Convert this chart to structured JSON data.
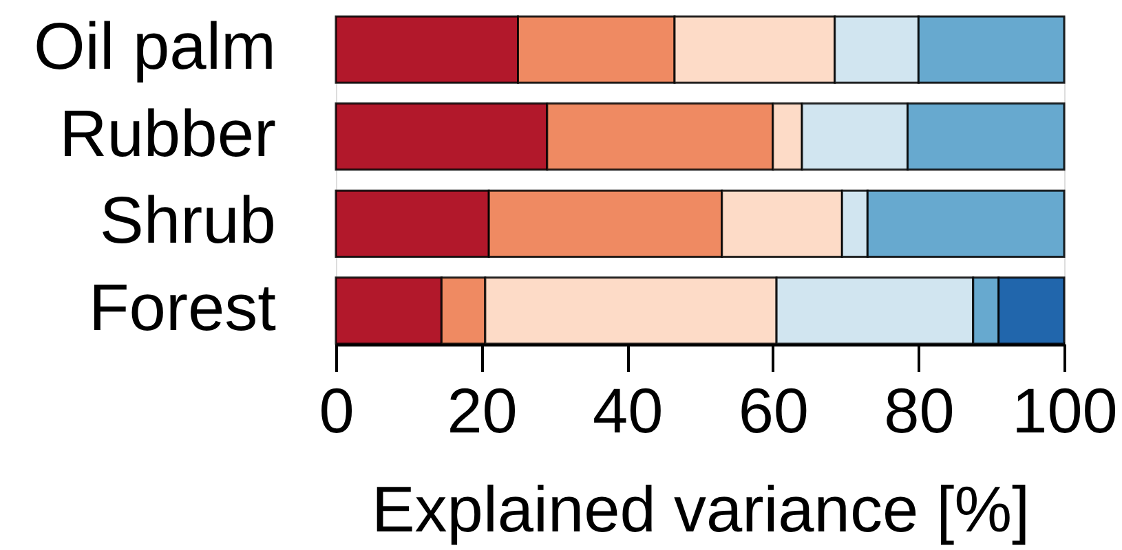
{
  "chart_data": {
    "type": "bar",
    "orientation": "horizontal",
    "stacked": true,
    "xlabel": "Explained variance [%]",
    "categories": [
      "Oil palm",
      "Rubber",
      "Shrub",
      "Forest"
    ],
    "series": [
      {
        "color": "#b2182b",
        "values": [
          25,
          29,
          21,
          14.5
        ]
      },
      {
        "color": "#ef8a62",
        "values": [
          21.5,
          31,
          32,
          6
        ]
      },
      {
        "color": "#fddbc7",
        "values": [
          22,
          4,
          16.5,
          40
        ]
      },
      {
        "color": "#d1e5f0",
        "values": [
          11.5,
          14.5,
          3.5,
          27
        ]
      },
      {
        "color": "#67a9cf",
        "values": [
          20,
          21.5,
          27,
          3.5
        ]
      },
      {
        "color": "#2166ac",
        "values": [
          null,
          null,
          null,
          9
        ]
      }
    ],
    "xlim": [
      0,
      100
    ],
    "xticks": [
      0,
      20,
      40,
      60,
      80,
      100
    ]
  }
}
